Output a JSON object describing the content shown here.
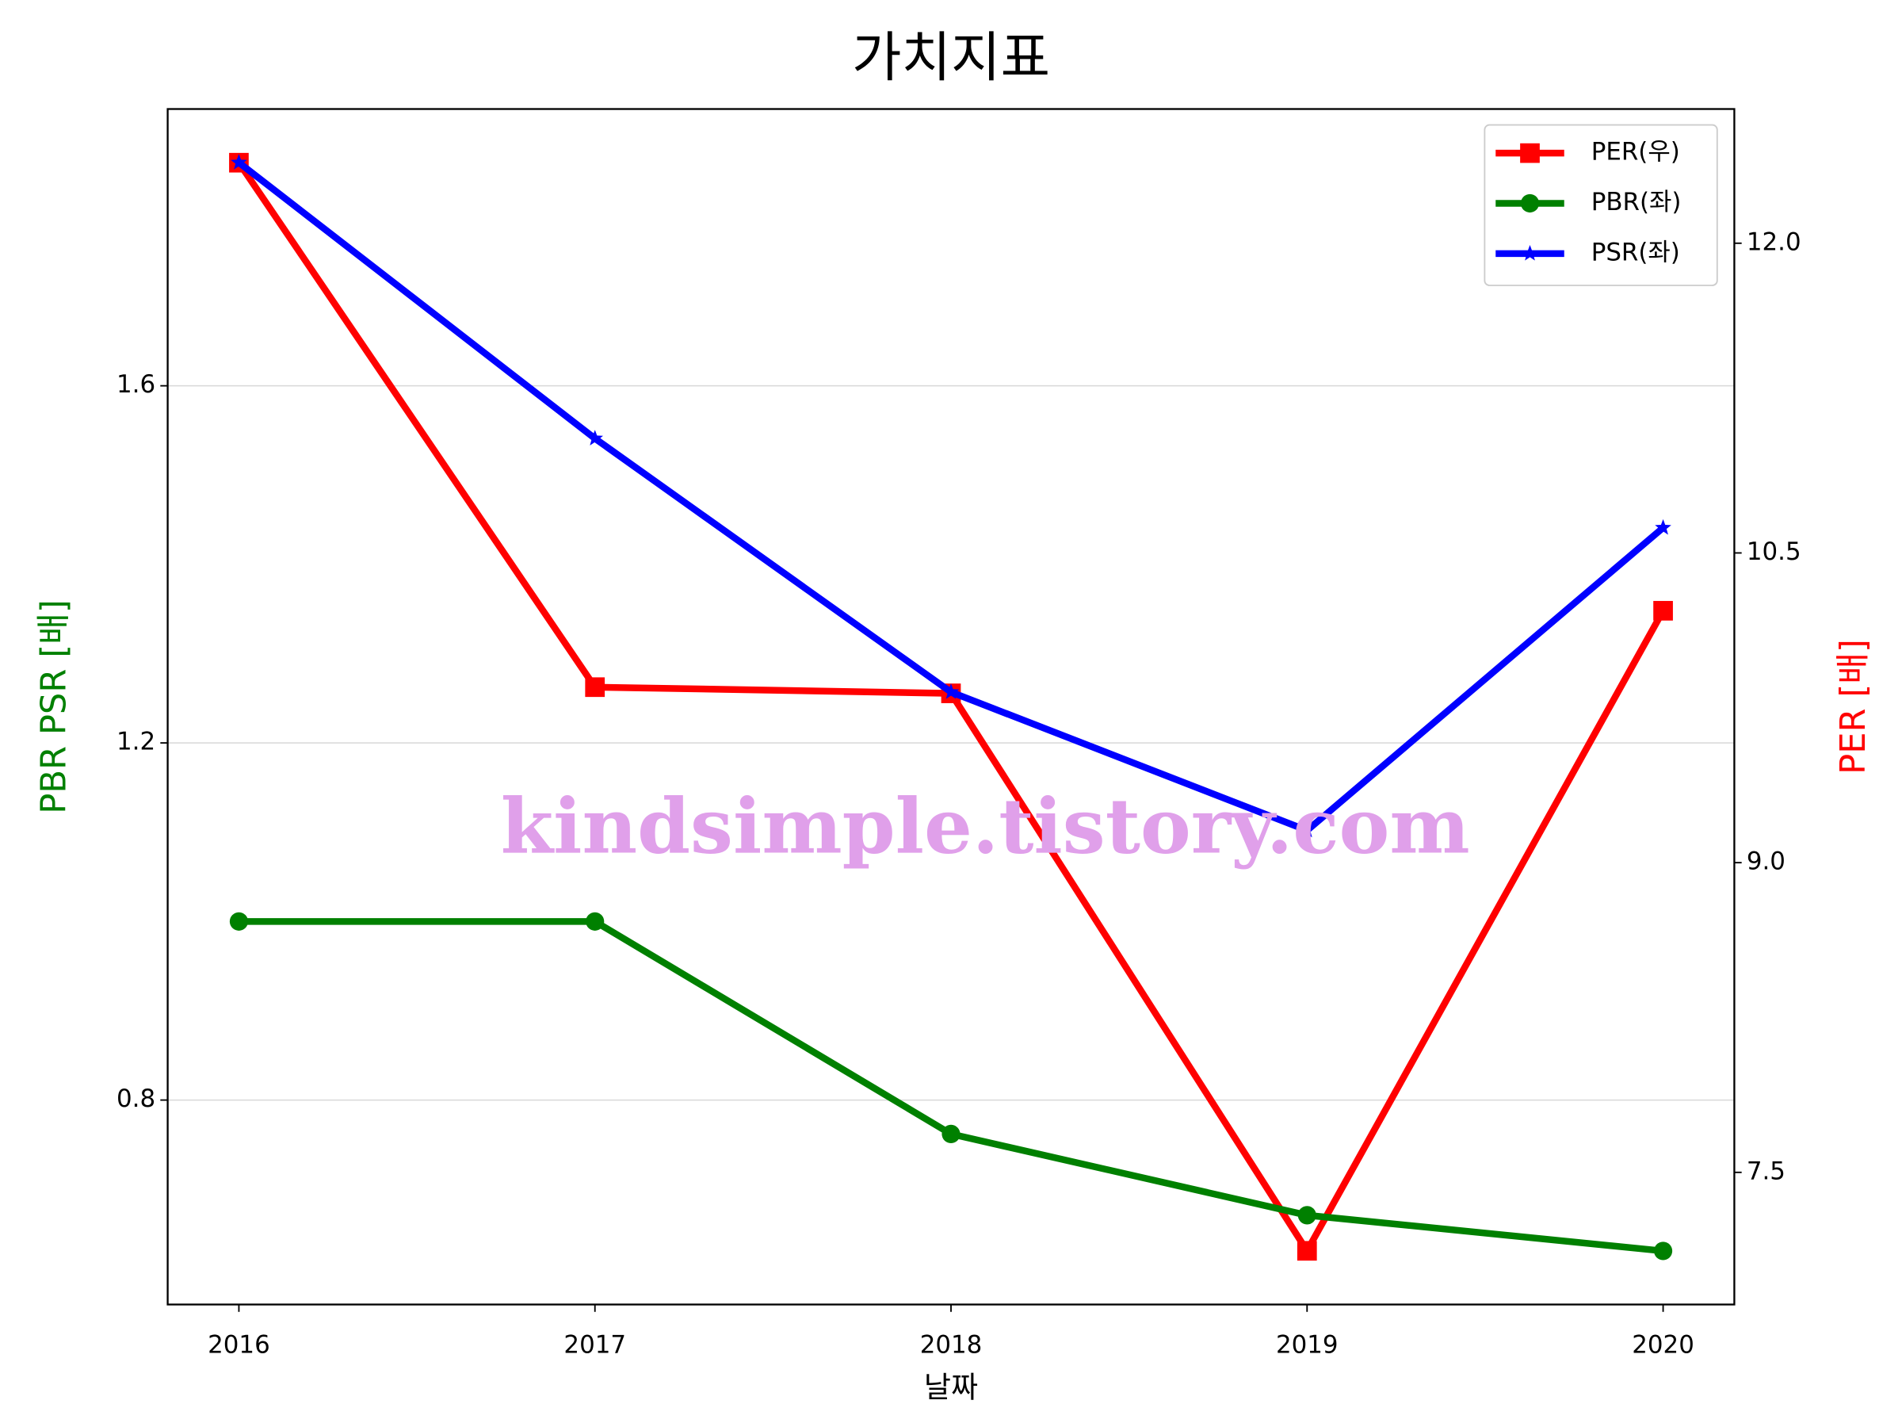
{
  "chart_data": {
    "type": "line",
    "title": "가치지표",
    "x_label": "날짜",
    "y_label": "PBR PSR [배]",
    "y2_label": "PER [배]",
    "watermark": "kindsimple.tistory.com",
    "x": [
      2016,
      2017,
      2018,
      2019,
      2020
    ],
    "xlim": [
      2015.8,
      2020.2
    ],
    "xticks": [
      2016,
      2017,
      2018,
      2019,
      2020
    ],
    "ylim": [
      0.571,
      1.91
    ],
    "yticks": [
      0.8,
      1.2,
      1.6
    ],
    "y2lim": [
      6.86,
      12.65
    ],
    "y2ticks": [
      {
        "value": 7.5,
        "label": "7.5"
      },
      {
        "value": 9,
        "label": "9.0"
      },
      {
        "value": 10.5,
        "label": "10.5"
      },
      {
        "value": 12,
        "label": "12.0"
      }
    ],
    "grid": true,
    "legend": "upper right",
    "series": [
      {
        "name": "PER(우)",
        "color": "#ff0000",
        "marker": "square",
        "axis": "y2",
        "values": [
          12.39,
          9.85,
          9.82,
          7.12,
          10.22
        ]
      },
      {
        "name": "PBR(좌)",
        "color": "#008000",
        "marker": "circle",
        "values": [
          1.0,
          1.0,
          0.762,
          0.671,
          0.631
        ]
      },
      {
        "name": "PSR(좌)",
        "color": "#0000ff",
        "marker": "star",
        "values": [
          1.85,
          1.541,
          1.257,
          1.102,
          1.441
        ]
      }
    ]
  }
}
